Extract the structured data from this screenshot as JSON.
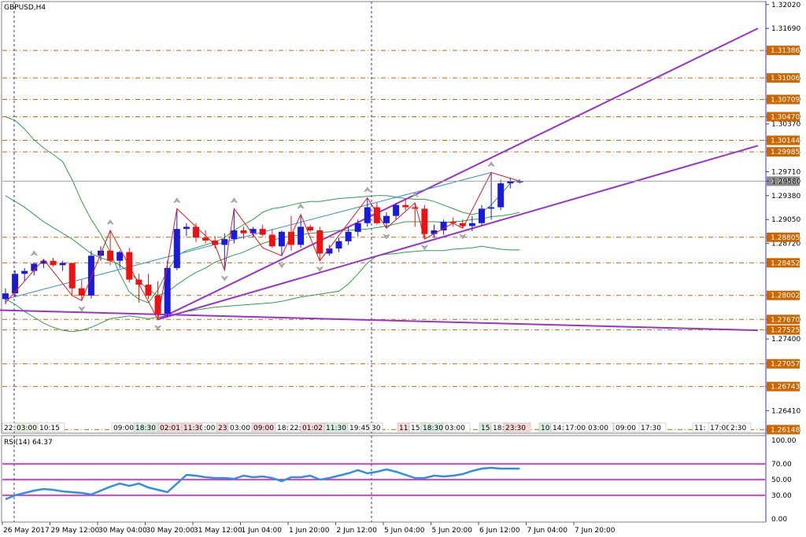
{
  "window": {
    "title": "GBPUSD,H4"
  },
  "indicator": {
    "title": "RSI(14) 64.37",
    "levels": [
      70,
      50,
      30
    ],
    "axis_ticks": [
      "100.00",
      "70.00",
      "50.00",
      "30.00",
      "0.00"
    ]
  },
  "colors": {
    "bull": "#1a1adc",
    "bear": "#ee1111",
    "channel": "#9933cc",
    "zigzag": "#e31a1a",
    "bands": "#2e9e4a",
    "trendline": "#2f8fdc",
    "levels": "#cc6600",
    "rsi": "#2f8fe0",
    "rsi_levels": "#e000e0",
    "current_price": "#888888"
  },
  "chart_data": {
    "type": "candlestick",
    "symbol": "GBPUSD",
    "timeframe": "H4",
    "ylim": [
      1.2612,
      1.3205
    ],
    "price_ticks": [
      "1.32020",
      "1.31690",
      "1.31380",
      "1.31006",
      "1.30709",
      "1.30470",
      "1.30370",
      "1.30144",
      "1.29985",
      "1.29710",
      "1.29580",
      "1.29380",
      "1.29050",
      "1.28805",
      "1.28720",
      "1.28452",
      "1.28002",
      "1.27670",
      "1.27525",
      "1.27400",
      "1.27057",
      "1.26743",
      "1.26410",
      "1.26148"
    ],
    "current_price": "1.29580",
    "levels": [
      1.31386,
      1.31006,
      1.30709,
      1.3047,
      1.30144,
      1.29985,
      1.28805,
      1.28452,
      1.28002,
      1.2767,
      1.27525,
      1.27057,
      1.26743,
      1.26148
    ],
    "level_labels": [
      "1.31386",
      "1.31006",
      "1.30709",
      "1.30470",
      "1.30144",
      "1.29985",
      "1.28805",
      "1.28452",
      "1.28002",
      "1.27670",
      "1.27525",
      "1.27057",
      "1.26743",
      "1.26148"
    ],
    "candles": [
      {
        "o": 1.2795,
        "h": 1.281,
        "l": 1.2788,
        "c": 1.2803
      },
      {
        "o": 1.2803,
        "h": 1.2835,
        "l": 1.2798,
        "c": 1.283
      },
      {
        "o": 1.283,
        "h": 1.2838,
        "l": 1.282,
        "c": 1.2834
      },
      {
        "o": 1.2834,
        "h": 1.2845,
        "l": 1.2828,
        "c": 1.2844
      },
      {
        "o": 1.2844,
        "h": 1.285,
        "l": 1.2838,
        "c": 1.2848
      },
      {
        "o": 1.2848,
        "h": 1.2852,
        "l": 1.284,
        "c": 1.2842
      },
      {
        "o": 1.2842,
        "h": 1.2848,
        "l": 1.2834,
        "c": 1.2845
      },
      {
        "o": 1.2845,
        "h": 1.2845,
        "l": 1.28,
        "c": 1.281
      },
      {
        "o": 1.281,
        "h": 1.2822,
        "l": 1.2793,
        "c": 1.28
      },
      {
        "o": 1.28,
        "h": 1.2862,
        "l": 1.2796,
        "c": 1.2855
      },
      {
        "o": 1.2855,
        "h": 1.2868,
        "l": 1.2848,
        "c": 1.2862
      },
      {
        "o": 1.2862,
        "h": 1.289,
        "l": 1.2842,
        "c": 1.2848
      },
      {
        "o": 1.2848,
        "h": 1.2862,
        "l": 1.2838,
        "c": 1.286
      },
      {
        "o": 1.286,
        "h": 1.2866,
        "l": 1.2818,
        "c": 1.2822
      },
      {
        "o": 1.2822,
        "h": 1.283,
        "l": 1.279,
        "c": 1.2815
      },
      {
        "o": 1.2815,
        "h": 1.283,
        "l": 1.2795,
        "c": 1.28
      },
      {
        "o": 1.28,
        "h": 1.282,
        "l": 1.2767,
        "c": 1.2775
      },
      {
        "o": 1.2775,
        "h": 1.2848,
        "l": 1.277,
        "c": 1.2838
      },
      {
        "o": 1.2838,
        "h": 1.292,
        "l": 1.2835,
        "c": 1.2892
      },
      {
        "o": 1.2892,
        "h": 1.29,
        "l": 1.2882,
        "c": 1.2895
      },
      {
        "o": 1.2895,
        "h": 1.29,
        "l": 1.2874,
        "c": 1.288
      },
      {
        "o": 1.288,
        "h": 1.289,
        "l": 1.2872,
        "c": 1.2876
      },
      {
        "o": 1.2876,
        "h": 1.2882,
        "l": 1.2865,
        "c": 1.287
      },
      {
        "o": 1.287,
        "h": 1.2886,
        "l": 1.2835,
        "c": 1.2878
      },
      {
        "o": 1.2878,
        "h": 1.292,
        "l": 1.2872,
        "c": 1.289
      },
      {
        "o": 1.289,
        "h": 1.2895,
        "l": 1.2878,
        "c": 1.2886
      },
      {
        "o": 1.2886,
        "h": 1.2895,
        "l": 1.288,
        "c": 1.2892
      },
      {
        "o": 1.2892,
        "h": 1.2898,
        "l": 1.2882,
        "c": 1.2884
      },
      {
        "o": 1.2884,
        "h": 1.2892,
        "l": 1.2866,
        "c": 1.2868
      },
      {
        "o": 1.2868,
        "h": 1.289,
        "l": 1.2855,
        "c": 1.2888
      },
      {
        "o": 1.2888,
        "h": 1.291,
        "l": 1.2862,
        "c": 1.287
      },
      {
        "o": 1.287,
        "h": 1.2912,
        "l": 1.2866,
        "c": 1.2895
      },
      {
        "o": 1.2895,
        "h": 1.2898,
        "l": 1.2888,
        "c": 1.289
      },
      {
        "o": 1.289,
        "h": 1.2895,
        "l": 1.2848,
        "c": 1.2858
      },
      {
        "o": 1.2858,
        "h": 1.287,
        "l": 1.2855,
        "c": 1.2865
      },
      {
        "o": 1.2865,
        "h": 1.288,
        "l": 1.286,
        "c": 1.2875
      },
      {
        "o": 1.2875,
        "h": 1.2895,
        "l": 1.287,
        "c": 1.2888
      },
      {
        "o": 1.2888,
        "h": 1.2905,
        "l": 1.2882,
        "c": 1.29
      },
      {
        "o": 1.29,
        "h": 1.2935,
        "l": 1.2895,
        "c": 1.2922
      },
      {
        "o": 1.2922,
        "h": 1.2928,
        "l": 1.2898,
        "c": 1.29
      },
      {
        "o": 1.29,
        "h": 1.2915,
        "l": 1.2893,
        "c": 1.291
      },
      {
        "o": 1.291,
        "h": 1.2928,
        "l": 1.2905,
        "c": 1.2925
      },
      {
        "o": 1.2925,
        "h": 1.2932,
        "l": 1.2918,
        "c": 1.2922
      },
      {
        "o": 1.2922,
        "h": 1.2928,
        "l": 1.2895,
        "c": 1.292
      },
      {
        "o": 1.292,
        "h": 1.2925,
        "l": 1.2878,
        "c": 1.2885
      },
      {
        "o": 1.2885,
        "h": 1.2898,
        "l": 1.288,
        "c": 1.289
      },
      {
        "o": 1.289,
        "h": 1.2905,
        "l": 1.2884,
        "c": 1.2902
      },
      {
        "o": 1.2902,
        "h": 1.2908,
        "l": 1.2895,
        "c": 1.29
      },
      {
        "o": 1.29,
        "h": 1.2905,
        "l": 1.2893,
        "c": 1.2896
      },
      {
        "o": 1.2896,
        "h": 1.291,
        "l": 1.2889,
        "c": 1.29
      },
      {
        "o": 1.29,
        "h": 1.2925,
        "l": 1.2896,
        "c": 1.292
      },
      {
        "o": 1.292,
        "h": 1.297,
        "l": 1.2905,
        "c": 1.2922
      },
      {
        "o": 1.2922,
        "h": 1.296,
        "l": 1.2918,
        "c": 1.2955
      },
      {
        "o": 1.2955,
        "h": 1.2963,
        "l": 1.2948,
        "c": 1.2958
      },
      {
        "o": 1.2958,
        "h": 1.296,
        "l": 1.2955,
        "c": 1.2958
      }
    ],
    "bands_upper": [
      1.3047,
      1.3042,
      1.303,
      1.3015,
      1.3004,
      1.2995,
      1.2985,
      1.296,
      1.293,
      1.2905,
      1.2885,
      1.286,
      1.283,
      1.2805,
      1.2795,
      1.279,
      1.2808,
      1.2834,
      1.2855,
      1.2862,
      1.2866,
      1.287,
      1.2874,
      1.288,
      1.289,
      1.2898,
      1.2905,
      1.2915,
      1.292,
      1.2922,
      1.2925,
      1.2928,
      1.293,
      1.293,
      1.2932,
      1.2934,
      1.2935,
      1.2936,
      1.2937,
      1.2938,
      1.2938,
      1.2936,
      1.2934,
      1.2933,
      1.2933,
      1.293,
      1.2925,
      1.292,
      1.2915,
      1.2912,
      1.2915,
      1.2925,
      1.294,
      1.2955,
      1.296
    ],
    "bands_middle": [
      1.2938,
      1.293,
      1.2922,
      1.2912,
      1.2902,
      1.2894,
      1.2886,
      1.2878,
      1.2868,
      1.2858,
      1.2852,
      1.2848,
      1.2842,
      1.2832,
      1.282,
      1.2808,
      1.28,
      1.2805,
      1.2815,
      1.2824,
      1.2832,
      1.2838,
      1.2846,
      1.2851,
      1.2856,
      1.286,
      1.2866,
      1.2872,
      1.2876,
      1.288,
      1.2882,
      1.2884,
      1.2886,
      1.2887,
      1.2888,
      1.289,
      1.289,
      1.2891,
      1.2892,
      1.2894,
      1.2896,
      1.2899,
      1.2902,
      1.2902,
      1.2902,
      1.2902,
      1.2901,
      1.2902,
      1.2903,
      1.2905,
      1.2906,
      1.2909,
      1.291,
      1.2912,
      1.2915
    ],
    "bands_lower": [
      1.2795,
      1.2788,
      1.2778,
      1.277,
      1.2762,
      1.2756,
      1.2752,
      1.275,
      1.2752,
      1.2756,
      1.2762,
      1.2768,
      1.277,
      1.2772,
      1.277,
      1.2768,
      1.277,
      1.2772,
      1.2775,
      1.2778,
      1.278,
      1.2782,
      1.2784,
      1.2785,
      1.2786,
      1.2787,
      1.2788,
      1.2789,
      1.279,
      1.2792,
      1.2795,
      1.2798,
      1.28,
      1.2802,
      1.2804,
      1.2806,
      1.2816,
      1.283,
      1.2845,
      1.2855,
      1.2857,
      1.2858,
      1.286,
      1.2861,
      1.2862,
      1.2862,
      1.2862,
      1.2864,
      1.2865,
      1.2866,
      1.2868,
      1.2866,
      1.2864,
      1.2863,
      1.2863
    ],
    "zigzag": [
      [
        0,
        1.279
      ],
      [
        4,
        1.285
      ],
      [
        7,
        1.28
      ],
      [
        8,
        1.2793
      ],
      [
        11,
        1.289
      ],
      [
        16,
        1.2767
      ],
      [
        18,
        1.292
      ],
      [
        22,
        1.287
      ],
      [
        23,
        1.2835
      ],
      [
        24,
        1.292
      ],
      [
        27,
        1.2866
      ],
      [
        29,
        1.2855
      ],
      [
        31,
        1.2912
      ],
      [
        33,
        1.2848
      ],
      [
        38,
        1.2935
      ],
      [
        40,
        1.2893
      ],
      [
        43,
        1.2928
      ],
      [
        44,
        1.2878
      ],
      [
        47,
        1.29
      ],
      [
        48,
        1.2893
      ],
      [
        51,
        1.297
      ],
      [
        54,
        1.2958
      ]
    ],
    "trendline": [
      [
        0,
        1.2795
      ],
      [
        51,
        1.297
      ]
    ],
    "channel_lines": [
      [
        [
          16,
          1.2767
        ],
        [
          79,
          1.3169
        ]
      ],
      [
        [
          16,
          1.2767
        ],
        [
          79,
          1.3007
        ]
      ],
      [
        [
          -1,
          1.278
        ],
        [
          79,
          1.2752
        ]
      ]
    ],
    "arrows": [
      [
        3,
        1.2852,
        "up"
      ],
      [
        8,
        1.2788,
        "down"
      ],
      [
        11,
        1.2895,
        "up"
      ],
      [
        16,
        1.2762,
        "down"
      ],
      [
        18,
        1.2925,
        "up"
      ],
      [
        23,
        1.283,
        "down"
      ],
      [
        24,
        1.2925,
        "up"
      ],
      [
        29,
        1.2848,
        "down"
      ],
      [
        31,
        1.2917,
        "up"
      ],
      [
        33,
        1.2843,
        "down"
      ],
      [
        38,
        1.294,
        "up"
      ],
      [
        40,
        1.2888,
        "down"
      ],
      [
        43,
        1.2933,
        "up"
      ],
      [
        44,
        1.2873,
        "down"
      ],
      [
        48,
        1.2888,
        "down"
      ],
      [
        51,
        1.2975,
        "up"
      ]
    ],
    "rsi": [
      25,
      30,
      33,
      36,
      38,
      37,
      35,
      34,
      33,
      31,
      36,
      41,
      45,
      42,
      45,
      40,
      37,
      34,
      45,
      56,
      55,
      53,
      52,
      52,
      51,
      55,
      53,
      54,
      52,
      48,
      53,
      53,
      55,
      50,
      52,
      55,
      58,
      62,
      58,
      60,
      63,
      60,
      56,
      52,
      52,
      55,
      54,
      55,
      57,
      61,
      64,
      65,
      64,
      64,
      64
    ],
    "session_labels": [
      {
        "t": "22:",
        "bg": "#ffffff",
        "x": 3
      },
      {
        "t": "03:00",
        "bg": "#e8f4e0",
        "x": 19
      },
      {
        "t": "10:15",
        "bg": "#ffffff",
        "x": 48
      },
      {
        "t": "09:00",
        "bg": "#ffffff",
        "x": 142
      },
      {
        "t": "18:30",
        "bg": "#d8f0e4",
        "x": 170
      },
      {
        "t": "02:01",
        "bg": "#f8d8d8",
        "x": 201
      },
      {
        "t": "11:30",
        "bg": "#f8d8d8",
        "x": 231
      },
      {
        "t": ":00",
        "bg": "#ffffff",
        "x": 257
      },
      {
        "t": "23:",
        "bg": "#f8d8d8",
        "x": 275
      },
      {
        "t": "03:00",
        "bg": "#ffffff",
        "x": 290
      },
      {
        "t": "09:00",
        "bg": "#f8d8d8",
        "x": 320
      },
      {
        "t": "18:",
        "bg": "#ffffff",
        "x": 350
      },
      {
        "t": "22:",
        "bg": "#ffffff",
        "x": 366
      },
      {
        "t": "01:02",
        "bg": "#f8d8d8",
        "x": 382
      },
      {
        "t": "11:30",
        "bg": "#d8f0e4",
        "x": 412
      },
      {
        "t": "19:45",
        "bg": "#ffffff",
        "x": 442
      },
      {
        "t": "30",
        "bg": "#ffffff",
        "x": 470
      },
      {
        "t": "11:",
        "bg": "#f8d8d8",
        "x": 505
      },
      {
        "t": "15:",
        "bg": "#ffffff",
        "x": 520
      },
      {
        "t": "18:30",
        "bg": "#d8f0e4",
        "x": 535
      },
      {
        "t": "03:00",
        "bg": "#ffffff",
        "x": 563
      },
      {
        "t": "15:",
        "bg": "#d8f0e4",
        "x": 609
      },
      {
        "t": "18:",
        "bg": "#ffffff",
        "x": 624
      },
      {
        "t": "23:30",
        "bg": "#f8d8d8",
        "x": 640
      },
      {
        "t": "10:",
        "bg": "#d8f0e4",
        "x": 685
      },
      {
        "t": "14:",
        "bg": "#ffffff",
        "x": 700
      },
      {
        "t": "17:00",
        "bg": "#ffffff",
        "x": 716
      },
      {
        "t": "03:00",
        "bg": "#ffffff",
        "x": 745
      },
      {
        "t": "09:00",
        "bg": "#ffffff",
        "x": 780
      },
      {
        "t": "17:30",
        "bg": "#ffffff",
        "x": 812
      },
      {
        "t": "11:",
        "bg": "#ffffff",
        "x": 880
      },
      {
        "t": "17:00",
        "bg": "#ffffff",
        "x": 900
      },
      {
        "t": "2:30",
        "bg": "#ffffff",
        "x": 926
      }
    ],
    "x_labels": [
      "26 May 2017",
      "29 May 12:00",
      "30 May 04:00",
      "30 May 20:00",
      "31 May 12:00",
      "1 Jun 04:00",
      "1 Jun 20:00",
      "2 Jun 12:00",
      "5 Jun 04:00",
      "5 Jun 20:00",
      "6 Jun 12:00",
      "7 Jun 04:00",
      "7 Jun 20:00"
    ]
  }
}
